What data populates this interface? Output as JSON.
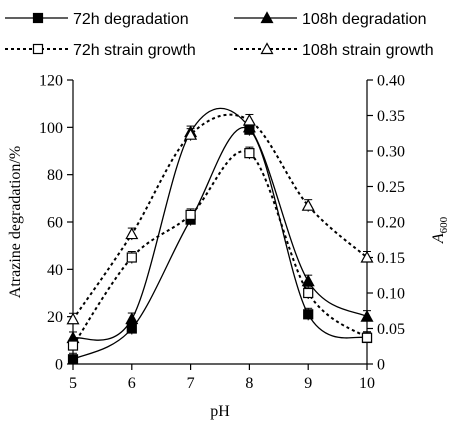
{
  "chart_data": {
    "type": "line",
    "xlabel": "pH",
    "ylabel_left": "Atrazine degradation/%",
    "ylabel_right_base": "A",
    "ylabel_right_sub": "600",
    "x": [
      5,
      6,
      7,
      8,
      9,
      10
    ],
    "xlim": [
      5,
      10
    ],
    "ylim_left": [
      0,
      120
    ],
    "ylim_right": [
      0,
      0.4
    ],
    "left_ticks": [
      "0",
      "20",
      "40",
      "60",
      "80",
      "100",
      "120"
    ],
    "right_ticks": [
      "0",
      "0.05",
      "0.10",
      "0.15",
      "0.20",
      "0.25",
      "0.30",
      "0.35",
      "0.40"
    ],
    "x_ticks": [
      "5",
      "6",
      "7",
      "8",
      "9",
      "10"
    ],
    "grid": false,
    "legend_position": "top",
    "series": [
      {
        "name": "72h degradation",
        "axis": "left",
        "marker": "square-filled",
        "line": "solid",
        "values": [
          2,
          15,
          61,
          99,
          21,
          11
        ]
      },
      {
        "name": "108h degradation",
        "axis": "left",
        "marker": "triangle-filled",
        "line": "solid",
        "values": [
          11,
          19,
          98,
          100,
          35,
          20
        ]
      },
      {
        "name": "72h strain growth",
        "axis": "right",
        "marker": "square-open",
        "line": "dotted",
        "values": [
          0.026,
          0.15,
          0.21,
          0.297,
          0.1,
          0.037
        ]
      },
      {
        "name": "108h strain growth",
        "axis": "right",
        "marker": "triangle-open",
        "line": "dotted",
        "values": [
          0.063,
          0.183,
          0.323,
          0.343,
          0.223,
          0.15
        ]
      }
    ]
  }
}
